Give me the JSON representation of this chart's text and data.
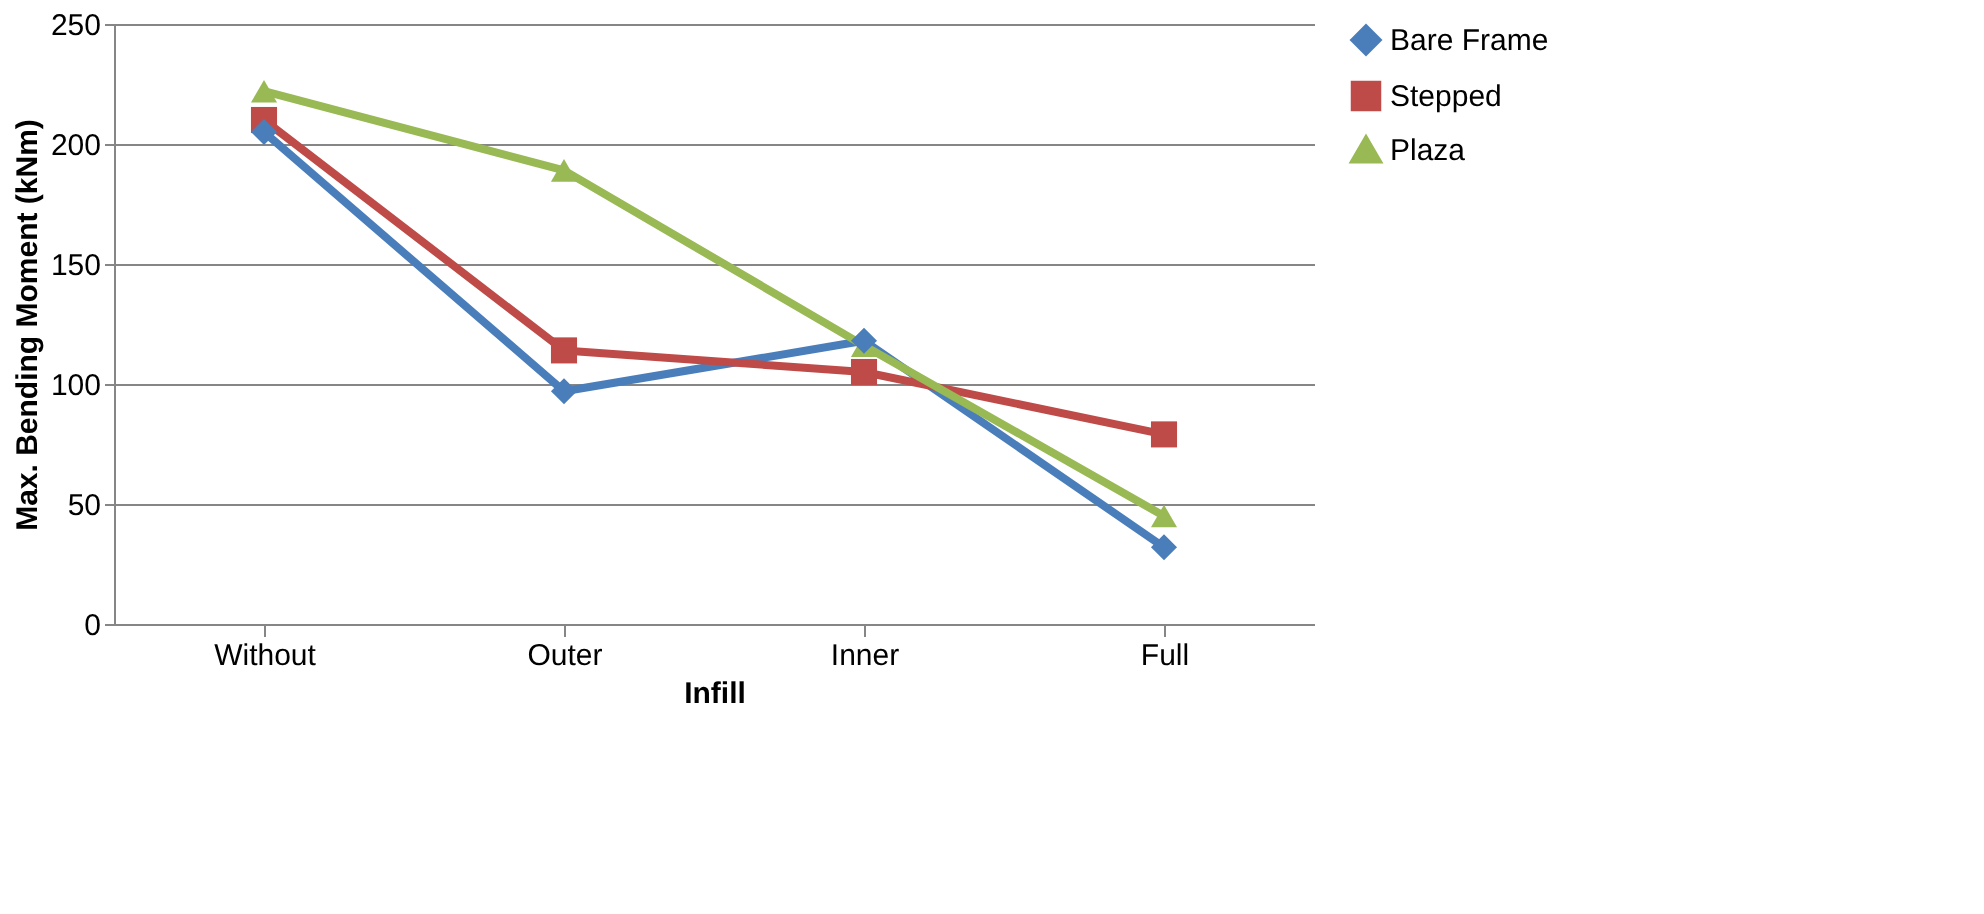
{
  "chart_data": {
    "type": "line",
    "xlabel": "Infill",
    "ylabel": "Max. Bending Moment (kNm)",
    "categories": [
      "Without",
      "Outer",
      "Inner",
      "Full"
    ],
    "series": [
      {
        "name": "Bare Frame",
        "color": "#4a7ebb",
        "marker": "diamond",
        "values": [
          205,
          97,
          118,
          32
        ]
      },
      {
        "name": "Stepped",
        "color": "#be4b48",
        "marker": "square",
        "values": [
          210,
          114,
          105,
          79
        ]
      },
      {
        "name": "Plaza",
        "color": "#98b954",
        "marker": "triangle",
        "values": [
          222,
          189,
          116,
          45
        ]
      }
    ],
    "ylim": [
      0,
      250
    ],
    "yticks": [
      0,
      50,
      100,
      150,
      200,
      250
    ],
    "grid": "y",
    "legend": "right",
    "line_style": "solid"
  }
}
